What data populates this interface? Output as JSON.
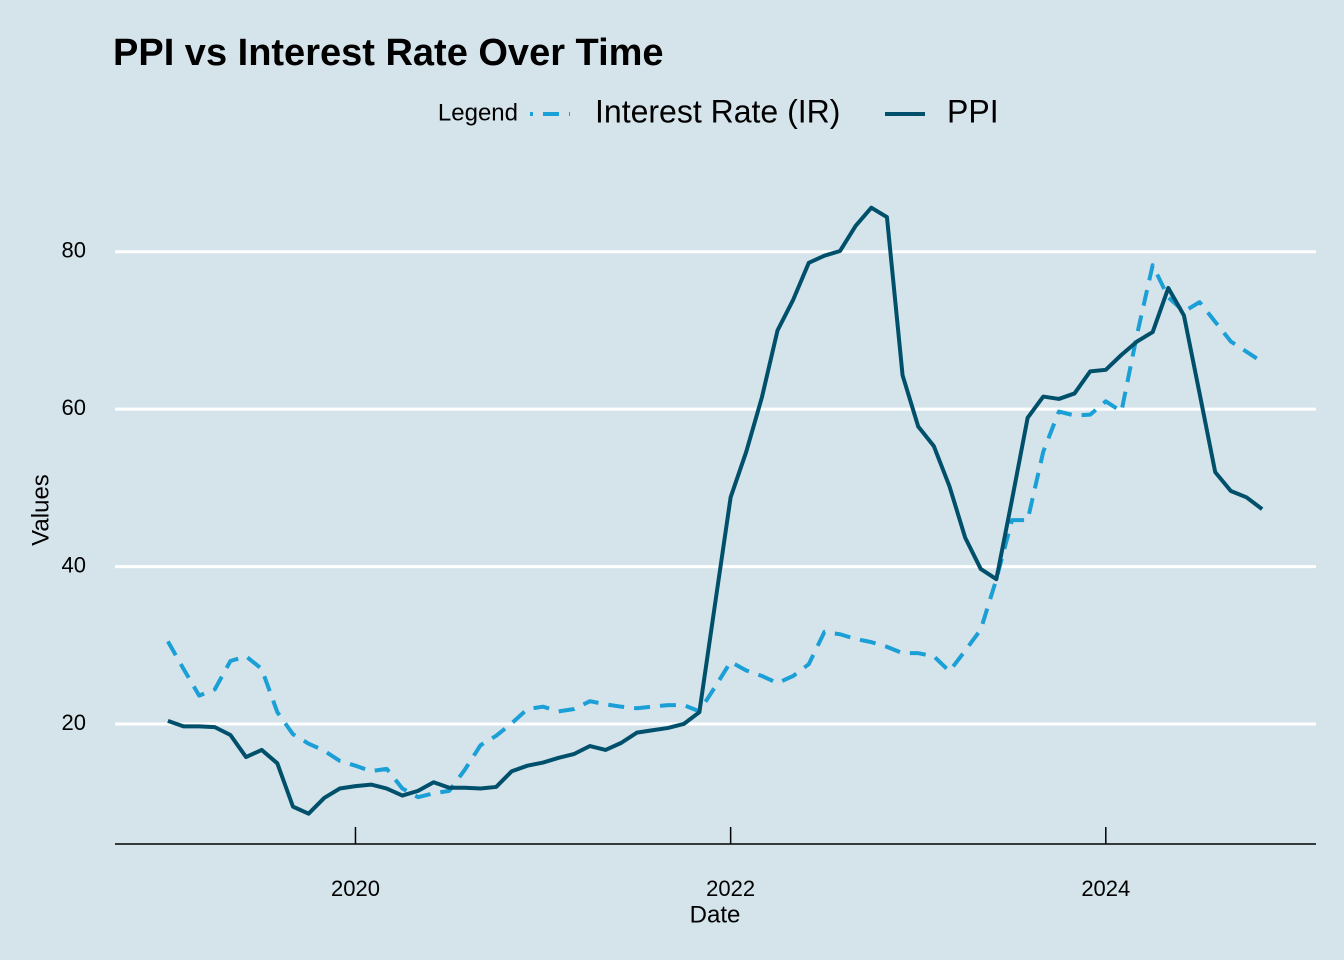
{
  "chart_data": {
    "type": "line",
    "title": "PPI vs Interest Rate Over Time",
    "legend_title": "Legend",
    "legend_position": "top",
    "x_label": "Date",
    "y_label": "Values",
    "x": [
      "2019-01",
      "2019-02",
      "2019-03",
      "2019-04",
      "2019-05",
      "2019-06",
      "2019-07",
      "2019-08",
      "2019-09",
      "2019-10",
      "2019-11",
      "2019-12",
      "2020-01",
      "2020-02",
      "2020-03",
      "2020-04",
      "2020-05",
      "2020-06",
      "2020-07",
      "2020-08",
      "2020-09",
      "2020-10",
      "2020-11",
      "2020-12",
      "2021-01",
      "2021-02",
      "2021-03",
      "2021-04",
      "2021-05",
      "2021-06",
      "2021-07",
      "2021-08",
      "2021-09",
      "2021-10",
      "2021-11",
      "2021-12",
      "2022-01",
      "2022-02",
      "2022-03",
      "2022-04",
      "2022-05",
      "2022-06",
      "2022-07",
      "2022-08",
      "2022-09",
      "2022-10",
      "2022-11",
      "2022-12",
      "2023-01",
      "2023-02",
      "2023-03",
      "2023-04",
      "2023-05",
      "2023-06",
      "2023-07",
      "2023-08",
      "2023-09",
      "2023-10",
      "2023-11",
      "2023-12",
      "2024-01",
      "2024-02",
      "2024-03",
      "2024-04",
      "2024-05",
      "2024-06",
      "2024-07",
      "2024-08",
      "2024-09",
      "2024-10",
      "2024-11"
    ],
    "series": [
      {
        "name": "Interest Rate (IR)",
        "color": "#1a9fd6",
        "dashed": true,
        "values": [
          30.5,
          27.0,
          23.6,
          24.4,
          28.0,
          28.6,
          27.0,
          21.5,
          18.7,
          17.5,
          16.6,
          15.3,
          14.7,
          14.0,
          14.3,
          11.8,
          10.7,
          11.2,
          11.5,
          14.2,
          17.3,
          18.5,
          20.1,
          21.9,
          22.2,
          21.6,
          21.9,
          22.9,
          22.5,
          22.2,
          22.0,
          22.2,
          22.4,
          22.4,
          21.6,
          24.7,
          27.9,
          26.8,
          26.1,
          25.2,
          26.1,
          27.6,
          31.7,
          31.4,
          30.8,
          30.4,
          29.8,
          29.0,
          29.0,
          28.6,
          26.7,
          29.3,
          32.0,
          38.4,
          45.9,
          45.9,
          54.6,
          59.7,
          59.2,
          59.3,
          61.0,
          59.7,
          69.5,
          78.3,
          74.2,
          72.4,
          73.6,
          71.1,
          68.6,
          67.3,
          66.0
        ]
      },
      {
        "name": "PPI",
        "color": "#00506b",
        "dashed": false,
        "values": [
          20.4,
          19.7,
          19.7,
          19.6,
          18.6,
          15.8,
          16.7,
          15.0,
          9.5,
          8.6,
          10.6,
          11.8,
          12.1,
          12.3,
          11.8,
          10.9,
          11.5,
          12.6,
          11.9,
          11.9,
          11.8,
          12.0,
          14.0,
          14.7,
          15.1,
          15.7,
          16.2,
          17.2,
          16.7,
          17.6,
          18.9,
          19.2,
          19.5,
          20.0,
          21.5,
          35.2,
          48.8,
          54.6,
          61.5,
          70.0,
          73.9,
          78.6,
          79.5,
          80.1,
          83.3,
          85.6,
          84.4,
          64.3,
          57.8,
          55.3,
          50.2,
          43.7,
          39.7,
          38.4,
          48.5,
          58.9,
          61.6,
          61.3,
          62.0,
          64.8,
          65.0,
          66.9,
          68.6,
          69.8,
          75.4,
          71.9,
          62.0,
          52.0,
          49.6,
          48.8,
          47.3
        ]
      }
    ],
    "xlim": [
      "2018-10",
      "2025-02"
    ],
    "xticks": [
      "2020",
      "2022",
      "2024"
    ],
    "ylim": [
      4.75,
      89.45
    ],
    "yticks": [
      20,
      40,
      60,
      80
    ],
    "grid": true
  }
}
